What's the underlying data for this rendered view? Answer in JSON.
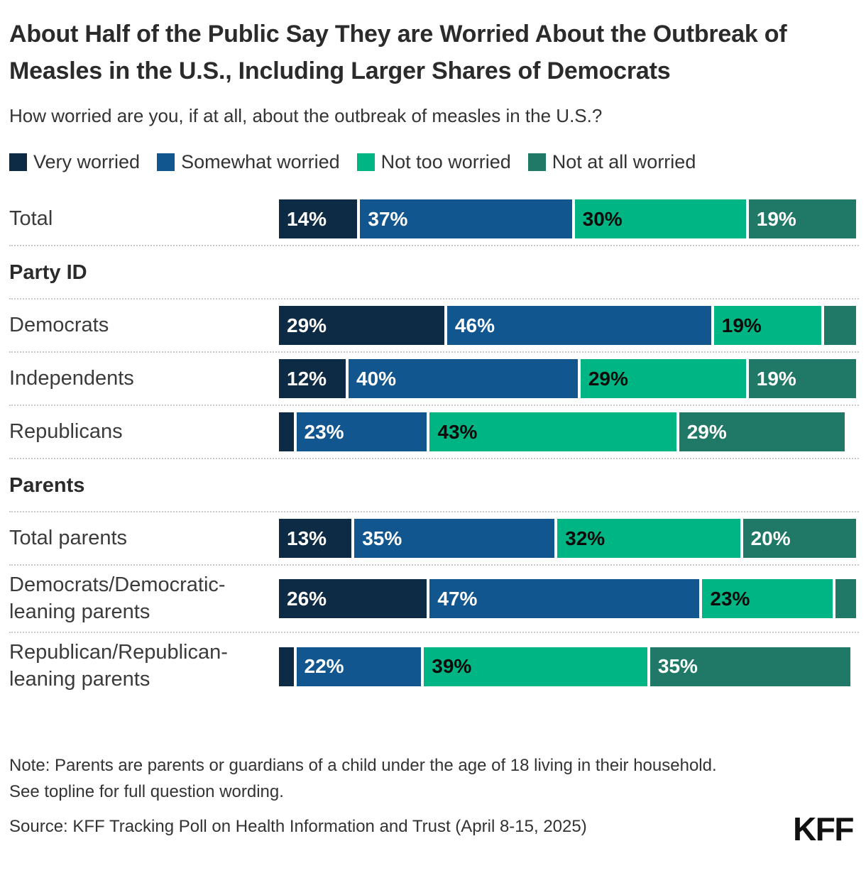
{
  "chart_data": {
    "type": "bar",
    "stacked": true,
    "orientation": "horizontal",
    "title": "About Half of the Public Say They are Worried About the Outbreak of Measles in the U.S., Including Larger Shares of Democrats",
    "subtitle": "How worried are you, if at all, about the outbreak of measles in the U.S.?",
    "xlim": [
      0,
      100
    ],
    "grid": false,
    "legend_position": "top",
    "value_suffix": "%",
    "label_min_pct": 10,
    "row_separator_style": "dotted",
    "categories": [
      "Total",
      "Democrats",
      "Independents",
      "Republicans",
      "Total parents",
      "Democrats/Democratic-leaning parents",
      "Republican/Republican-leaning parents"
    ],
    "sections": [
      {
        "header": "Party ID",
        "before_category": "Democrats"
      },
      {
        "header": "Parents",
        "before_category": "Total parents"
      }
    ],
    "series": [
      {
        "name": "Very worried",
        "color": "#0d2b45",
        "label_color": "#ffffff",
        "values": [
          14,
          29,
          12,
          3,
          13,
          26,
          3
        ]
      },
      {
        "name": "Somewhat worried",
        "color": "#11568f",
        "label_color": "#ffffff",
        "values": [
          37,
          46,
          40,
          23,
          35,
          47,
          22
        ]
      },
      {
        "name": "Not too worried",
        "color": "#00b584",
        "label_color": "#0a0a0a",
        "values": [
          30,
          19,
          29,
          43,
          32,
          23,
          39
        ]
      },
      {
        "name": "Not at all worried",
        "color": "#207967",
        "label_color": "#ffffff",
        "values": [
          19,
          6,
          19,
          29,
          20,
          4,
          35
        ]
      }
    ]
  },
  "footer": {
    "note_line1": "Note: Parents are parents or guardians of a child under the age of 18 living in their household.",
    "note_line2": "See topline for full question wording.",
    "source": "Source: KFF Tracking Poll on Health Information and Trust (April 8-15, 2025)",
    "logo": "KFF"
  }
}
